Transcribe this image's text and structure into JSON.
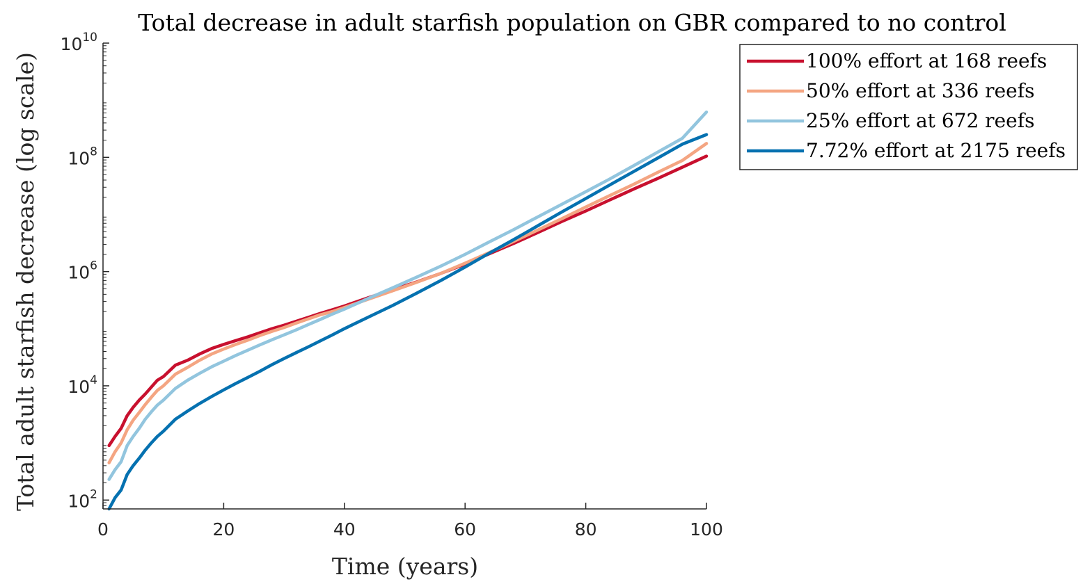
{
  "chart_data": {
    "type": "line",
    "title": "Total decrease in adult starfish population on GBR compared to no control",
    "xlabel": "Time (years)",
    "ylabel": "Total adult starfish decrease (log scale)",
    "xlim": [
      0,
      100
    ],
    "ylim": [
      70,
      10000000000
    ],
    "yscale": "log",
    "xticks": [
      0,
      20,
      40,
      60,
      80,
      100
    ],
    "yticks": [
      {
        "value": 100,
        "base": "10",
        "exp": "2"
      },
      {
        "value": 10000,
        "base": "10",
        "exp": "4"
      },
      {
        "value": 1000000,
        "base": "10",
        "exp": "6"
      },
      {
        "value": 100000000,
        "base": "10",
        "exp": "8"
      },
      {
        "value": 10000000000,
        "base": "10",
        "exp": "10"
      }
    ],
    "grid": false,
    "legend_position": "outside-top-right",
    "series": [
      {
        "name": "100% effort at 168 reefs",
        "color": "#c8102e",
        "x": [
          1,
          2,
          3,
          4,
          5,
          6,
          7,
          8,
          9,
          10,
          12,
          14,
          16,
          18,
          20,
          22,
          24,
          26,
          28,
          30,
          32,
          34,
          36,
          38,
          40,
          44,
          48,
          52,
          56,
          60,
          64,
          68,
          72,
          76,
          80,
          84,
          88,
          92,
          96,
          100
        ],
        "y": [
          900,
          1300,
          1800,
          3000,
          4200,
          5600,
          7200,
          9500,
          12500,
          14500,
          23000,
          28000,
          36000,
          45000,
          53000,
          62000,
          72000,
          85000,
          100000,
          115000,
          135000,
          158000,
          185000,
          215000,
          250000,
          350000,
          480000,
          660000,
          930000,
          1350000,
          2050000,
          3100000,
          4800000,
          7500000,
          11500000,
          18000000,
          28000000,
          43000000,
          67000000,
          105000000
        ]
      },
      {
        "name": "50% effort at 336 reefs",
        "color": "#f4a582",
        "x": [
          1,
          2,
          3,
          4,
          5,
          6,
          7,
          8,
          9,
          10,
          12,
          14,
          16,
          18,
          20,
          22,
          24,
          26,
          28,
          30,
          32,
          34,
          36,
          38,
          40,
          44,
          48,
          52,
          56,
          60,
          64,
          68,
          72,
          76,
          80,
          84,
          88,
          92,
          96,
          100
        ],
        "y": [
          450,
          700,
          1000,
          1700,
          2500,
          3400,
          4700,
          6300,
          8300,
          10000,
          16000,
          21000,
          28000,
          36000,
          44000,
          53000,
          63000,
          76000,
          90000,
          105000,
          125000,
          148000,
          175000,
          200000,
          235000,
          330000,
          460000,
          650000,
          930000,
          1400000,
          2150000,
          3350000,
          5300000,
          8400000,
          13500000,
          21500000,
          34000000,
          55000000,
          88000000,
          175000000
        ]
      },
      {
        "name": "25% effort at 672 reefs",
        "color": "#92c5de",
        "x": [
          1,
          2,
          3,
          4,
          5,
          6,
          7,
          8,
          9,
          10,
          12,
          14,
          16,
          18,
          20,
          22,
          24,
          26,
          28,
          30,
          32,
          34,
          36,
          38,
          40,
          44,
          48,
          52,
          56,
          60,
          64,
          68,
          72,
          76,
          80,
          84,
          88,
          92,
          96,
          100
        ],
        "y": [
          230,
          340,
          470,
          900,
          1300,
          1800,
          2600,
          3500,
          4600,
          5600,
          9000,
          12500,
          16500,
          21500,
          27000,
          34000,
          42000,
          52000,
          64000,
          78000,
          95000,
          118000,
          145000,
          180000,
          220000,
          340000,
          520000,
          800000,
          1250000,
          2000000,
          3300000,
          5400000,
          9000000,
          15000000,
          25000000,
          42000000,
          72000000,
          125000000,
          215000000,
          620000000
        ]
      },
      {
        "name": "7.72% effort at 2175 reefs",
        "color": "#0571b0",
        "x": [
          1,
          2,
          3,
          4,
          5,
          6,
          7,
          8,
          9,
          10,
          12,
          14,
          16,
          18,
          20,
          22,
          24,
          26,
          28,
          30,
          32,
          34,
          36,
          38,
          40,
          44,
          48,
          52,
          56,
          60,
          64,
          68,
          72,
          76,
          80,
          84,
          88,
          92,
          96,
          100
        ],
        "y": [
          70,
          110,
          150,
          280,
          400,
          540,
          750,
          1000,
          1300,
          1600,
          2600,
          3600,
          4900,
          6500,
          8500,
          11000,
          14000,
          18000,
          23500,
          30000,
          38000,
          48000,
          61000,
          78000,
          100000,
          160000,
          255000,
          420000,
          700000,
          1200000,
          2100000,
          3600000,
          6300000,
          11000000,
          19000000,
          33000000,
          57000000,
          98000000,
          170000000,
          250000000
        ]
      }
    ]
  }
}
